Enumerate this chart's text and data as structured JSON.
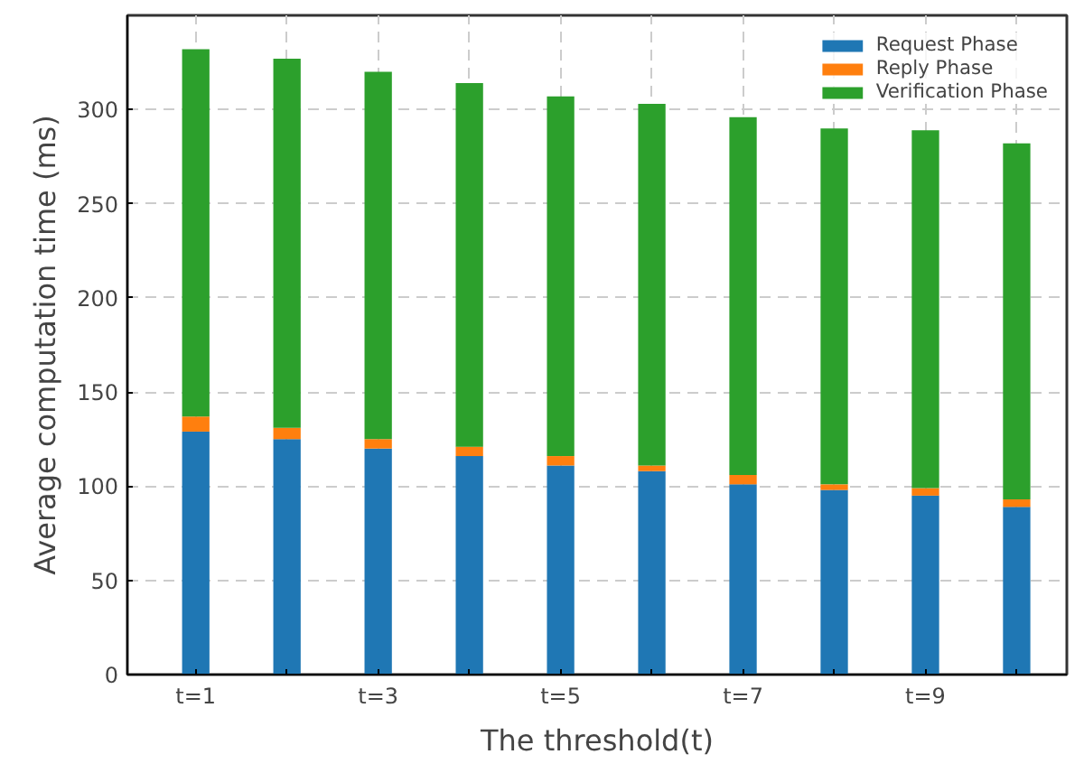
{
  "chart_data": {
    "type": "bar",
    "stacked": true,
    "xlabel": "The threshold(t)",
    "ylabel": "Average computation time (ms)",
    "categories": [
      "t=1",
      null,
      "t=3",
      null,
      "t=5",
      null,
      "t=7",
      null,
      "t=9",
      null
    ],
    "series": [
      {
        "name": "Request Phase",
        "color": "#1f77b4",
        "values": [
          129,
          125,
          120,
          116,
          111,
          108,
          101,
          98,
          95,
          89
        ]
      },
      {
        "name": "Reply Phase",
        "color": "#ff7f0e",
        "values": [
          8,
          6,
          5,
          5,
          5,
          3,
          5,
          3,
          4,
          4
        ]
      },
      {
        "name": "Verification Phase",
        "color": "#2ca02c",
        "values": [
          195,
          196,
          195,
          193,
          191,
          192,
          190,
          189,
          190,
          189
        ]
      }
    ],
    "ylim": [
      0,
      350
    ],
    "yticks": [
      0,
      50,
      100,
      150,
      200,
      250,
      300
    ],
    "grid": true,
    "legend": "top right"
  }
}
